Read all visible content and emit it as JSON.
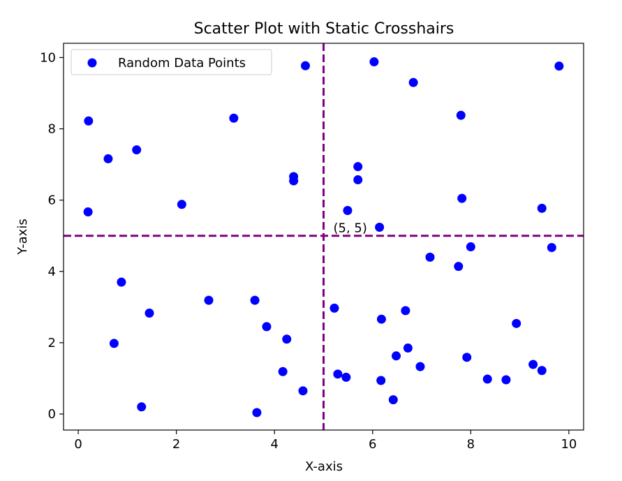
{
  "chart_data": {
    "type": "scatter",
    "title": "Scatter Plot with Static Crosshairs",
    "xlabel": "X-axis",
    "ylabel": "Y-axis",
    "xlim": [
      -0.3,
      10.3
    ],
    "ylim": [
      -0.45,
      10.4
    ],
    "xticks": [
      "0",
      "2",
      "4",
      "6",
      "8",
      "10"
    ],
    "yticks": [
      "0",
      "2",
      "4",
      "6",
      "8",
      "10"
    ],
    "grid": false,
    "legend": "top-left",
    "series": [
      {
        "name": "Random Data Points",
        "color": "#0000ff",
        "points": [
          [
            0.21,
            8.22
          ],
          [
            0.2,
            5.67
          ],
          [
            0.61,
            7.16
          ],
          [
            1.19,
            7.41
          ],
          [
            2.11,
            5.88
          ],
          [
            3.17,
            8.3
          ],
          [
            4.39,
            6.66
          ],
          [
            4.39,
            6.54
          ],
          [
            4.63,
            9.77
          ],
          [
            6.03,
            9.88
          ],
          [
            6.83,
            9.3
          ],
          [
            7.8,
            8.38
          ],
          [
            9.8,
            9.76
          ],
          [
            5.7,
            6.94
          ],
          [
            5.7,
            6.57
          ],
          [
            5.49,
            5.71
          ],
          [
            6.14,
            5.24
          ],
          [
            7.82,
            6.05
          ],
          [
            9.45,
            5.77
          ],
          [
            8.0,
            4.69
          ],
          [
            9.65,
            4.67
          ],
          [
            7.17,
            4.4
          ],
          [
            7.75,
            4.14
          ],
          [
            0.88,
            3.7
          ],
          [
            1.45,
            2.83
          ],
          [
            2.66,
            3.19
          ],
          [
            3.6,
            3.19
          ],
          [
            0.73,
            1.98
          ],
          [
            3.84,
            2.45
          ],
          [
            4.25,
            2.1
          ],
          [
            5.22,
            2.97
          ],
          [
            6.67,
            2.9
          ],
          [
            6.18,
            2.66
          ],
          [
            8.93,
            2.54
          ],
          [
            6.72,
            1.85
          ],
          [
            6.48,
            1.63
          ],
          [
            7.92,
            1.59
          ],
          [
            6.97,
            1.33
          ],
          [
            9.27,
            1.39
          ],
          [
            9.45,
            1.22
          ],
          [
            4.17,
            1.19
          ],
          [
            5.29,
            1.12
          ],
          [
            5.46,
            1.03
          ],
          [
            6.17,
            0.94
          ],
          [
            8.34,
            0.98
          ],
          [
            8.72,
            0.96
          ],
          [
            4.58,
            0.65
          ],
          [
            6.42,
            0.4
          ],
          [
            1.29,
            0.2
          ],
          [
            3.64,
            0.04
          ]
        ]
      }
    ],
    "crosshair": {
      "x": 5,
      "y": 5,
      "color": "#800080",
      "label": "(5, 5)"
    }
  }
}
